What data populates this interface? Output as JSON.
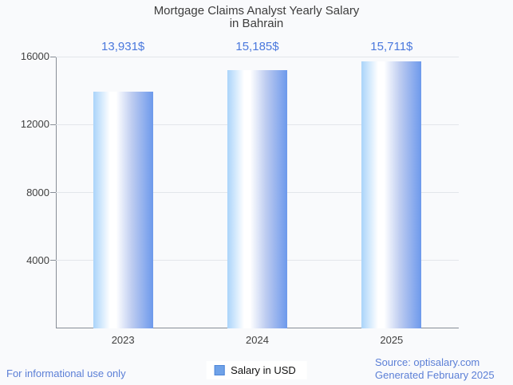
{
  "title": {
    "line1": "Mortgage Claims Analyst Yearly Salary",
    "line2": "in Bahrain"
  },
  "chart_data": {
    "type": "bar",
    "title": "Mortgage Claims Analyst Yearly Salary in Bahrain",
    "categories": [
      "2023",
      "2024",
      "2025"
    ],
    "series": [
      {
        "name": "Salary in USD",
        "values": [
          13931,
          15185,
          15711
        ],
        "value_labels": [
          "13,931$",
          "15,185$",
          "15,711$"
        ]
      }
    ],
    "xlabel": "",
    "ylabel": "",
    "ylim": [
      0,
      16000
    ],
    "yticks": [
      4000,
      8000,
      12000,
      16000
    ],
    "grid": true,
    "legend_position": "bottom"
  },
  "legend": {
    "label": "Salary in USD"
  },
  "footer": {
    "disclaimer": "For informational use only",
    "source": "Source: optisalary.com",
    "generated": "Generated February 2025"
  },
  "colors": {
    "background": "#f9fafc",
    "title_text": "#3d3d3d",
    "axis_text": "#404040",
    "value_label": "#4a78dd",
    "footer_text": "#5b7fd6",
    "gridline": "#e3e6ea",
    "axis_line": "#878d96",
    "bar_gradient_left": "#aad4fa",
    "bar_gradient_mid": "#ffffff",
    "bar_gradient_right": "#6d99ec",
    "legend_marker_fill": "#6fa2e8",
    "legend_marker_border": "#4d86d8"
  }
}
